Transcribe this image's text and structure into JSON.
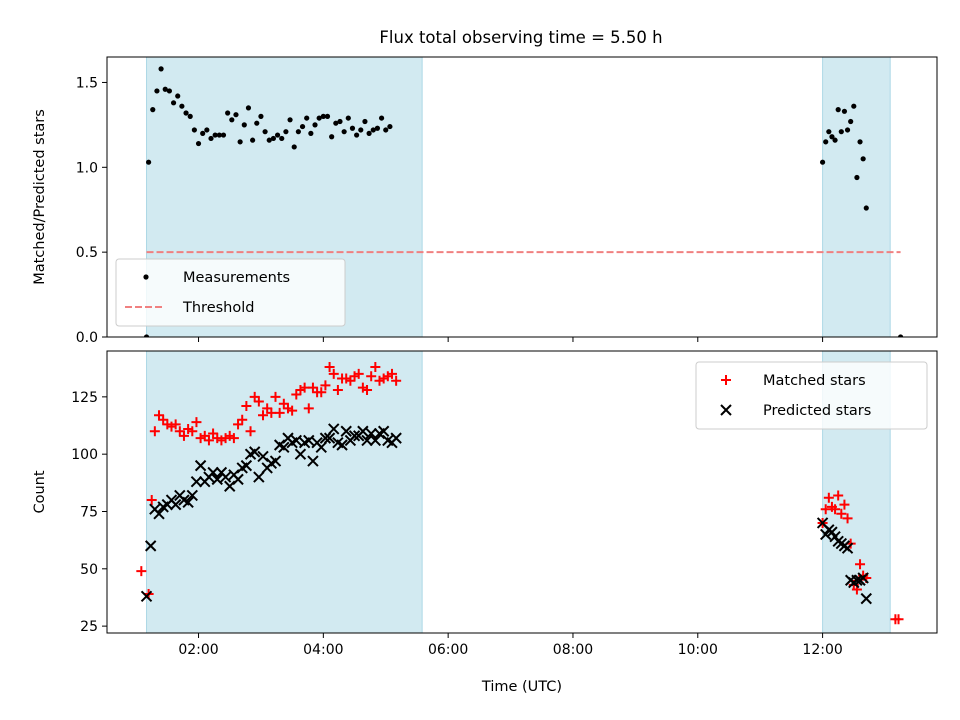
{
  "title": "Flux total observing time = 5.50 h",
  "chart_data": [
    {
      "type": "scatter",
      "ylabel": "Matched/Predicted stars",
      "xlim": [
        "00:32",
        "13:50"
      ],
      "ylim": [
        0,
        1.65
      ],
      "yticks": [
        "0.0",
        "0.5",
        "1.0",
        "1.5"
      ],
      "shaded_intervals": [
        [
          "01:10",
          "05:35"
        ],
        [
          "12:00",
          "13:05"
        ]
      ],
      "shade_color": "#add8e6",
      "threshold": {
        "value": 0.5,
        "x_start": "01:10",
        "x_end": "13:15",
        "color": "#f08080"
      },
      "legend_position": "lower-left",
      "series": [
        {
          "name": "Measurements",
          "marker": "dot",
          "color": "#000000",
          "points": [
            [
              "01:10",
              0.0
            ],
            [
              "01:12",
              1.03
            ],
            [
              "01:16",
              1.34
            ],
            [
              "01:20",
              1.45
            ],
            [
              "01:24",
              1.58
            ],
            [
              "01:28",
              1.46
            ],
            [
              "01:32",
              1.45
            ],
            [
              "01:36",
              1.38
            ],
            [
              "01:40",
              1.42
            ],
            [
              "01:44",
              1.36
            ],
            [
              "01:48",
              1.32
            ],
            [
              "01:52",
              1.3
            ],
            [
              "01:56",
              1.22
            ],
            [
              "02:00",
              1.14
            ],
            [
              "02:04",
              1.2
            ],
            [
              "02:08",
              1.22
            ],
            [
              "02:12",
              1.17
            ],
            [
              "02:16",
              1.19
            ],
            [
              "02:20",
              1.19
            ],
            [
              "02:24",
              1.19
            ],
            [
              "02:28",
              1.32
            ],
            [
              "02:32",
              1.28
            ],
            [
              "02:36",
              1.31
            ],
            [
              "02:40",
              1.15
            ],
            [
              "02:44",
              1.25
            ],
            [
              "02:48",
              1.35
            ],
            [
              "02:52",
              1.16
            ],
            [
              "02:56",
              1.26
            ],
            [
              "03:00",
              1.3
            ],
            [
              "03:04",
              1.21
            ],
            [
              "03:08",
              1.16
            ],
            [
              "03:12",
              1.17
            ],
            [
              "03:16",
              1.19
            ],
            [
              "03:20",
              1.17
            ],
            [
              "03:24",
              1.21
            ],
            [
              "03:28",
              1.28
            ],
            [
              "03:32",
              1.12
            ],
            [
              "03:36",
              1.21
            ],
            [
              "03:40",
              1.24
            ],
            [
              "03:44",
              1.29
            ],
            [
              "03:48",
              1.2
            ],
            [
              "03:52",
              1.25
            ],
            [
              "03:56",
              1.29
            ],
            [
              "04:00",
              1.3
            ],
            [
              "04:04",
              1.3
            ],
            [
              "04:08",
              1.18
            ],
            [
              "04:12",
              1.26
            ],
            [
              "04:16",
              1.27
            ],
            [
              "04:20",
              1.21
            ],
            [
              "04:24",
              1.29
            ],
            [
              "04:28",
              1.23
            ],
            [
              "04:32",
              1.19
            ],
            [
              "04:36",
              1.22
            ],
            [
              "04:40",
              1.27
            ],
            [
              "04:44",
              1.2
            ],
            [
              "04:48",
              1.22
            ],
            [
              "04:52",
              1.23
            ],
            [
              "04:56",
              1.29
            ],
            [
              "05:00",
              1.22
            ],
            [
              "05:04",
              1.24
            ],
            [
              "12:00",
              1.03
            ],
            [
              "12:03",
              1.15
            ],
            [
              "12:06",
              1.21
            ],
            [
              "12:09",
              1.18
            ],
            [
              "12:12",
              1.16
            ],
            [
              "12:15",
              1.34
            ],
            [
              "12:18",
              1.21
            ],
            [
              "12:21",
              1.33
            ],
            [
              "12:24",
              1.22
            ],
            [
              "12:27",
              1.27
            ],
            [
              "12:30",
              1.36
            ],
            [
              "12:33",
              0.94
            ],
            [
              "12:36",
              1.15
            ],
            [
              "12:39",
              1.05
            ],
            [
              "12:42",
              0.76
            ],
            [
              "13:15",
              0.0
            ]
          ]
        },
        {
          "name": "Threshold",
          "marker": "dashed-line",
          "color": "#f08080",
          "points": [
            [
              "01:10",
              0.5
            ],
            [
              "13:15",
              0.5
            ]
          ]
        }
      ]
    },
    {
      "type": "scatter",
      "xlabel": "Time (UTC)",
      "ylabel": "Count",
      "xlim": [
        "00:32",
        "13:50"
      ],
      "ylim": [
        22,
        145
      ],
      "xticks": [
        "02:00",
        "04:00",
        "06:00",
        "08:00",
        "10:00",
        "12:00"
      ],
      "yticks": [
        "25",
        "50",
        "75",
        "100",
        "125"
      ],
      "shaded_intervals": [
        [
          "01:10",
          "05:35"
        ],
        [
          "12:00",
          "13:05"
        ]
      ],
      "shade_color": "#add8e6",
      "legend_position": "upper-right",
      "series": [
        {
          "name": "Matched stars",
          "marker": "plus",
          "color": "#ff0000",
          "points": [
            [
              "01:05",
              49
            ],
            [
              "01:12",
              39
            ],
            [
              "01:15",
              80
            ],
            [
              "01:18",
              110
            ],
            [
              "01:22",
              117
            ],
            [
              "01:26",
              115
            ],
            [
              "01:30",
              113
            ],
            [
              "01:34",
              112
            ],
            [
              "01:38",
              113
            ],
            [
              "01:42",
              110
            ],
            [
              "01:46",
              108
            ],
            [
              "01:50",
              111
            ],
            [
              "01:54",
              110
            ],
            [
              "01:58",
              114
            ],
            [
              "02:02",
              107
            ],
            [
              "02:06",
              108
            ],
            [
              "02:10",
              106
            ],
            [
              "02:14",
              109
            ],
            [
              "02:18",
              107
            ],
            [
              "02:22",
              106
            ],
            [
              "02:26",
              107
            ],
            [
              "02:30",
              108
            ],
            [
              "02:34",
              107
            ],
            [
              "02:38",
              113
            ],
            [
              "02:42",
              115
            ],
            [
              "02:46",
              121
            ],
            [
              "02:50",
              110
            ],
            [
              "02:54",
              125
            ],
            [
              "02:58",
              123
            ],
            [
              "03:02",
              117
            ],
            [
              "03:06",
              120
            ],
            [
              "03:10",
              118
            ],
            [
              "03:14",
              125
            ],
            [
              "03:18",
              118
            ],
            [
              "03:22",
              122
            ],
            [
              "03:26",
              120
            ],
            [
              "03:30",
              119
            ],
            [
              "03:34",
              126
            ],
            [
              "03:38",
              128
            ],
            [
              "03:42",
              129
            ],
            [
              "03:46",
              120
            ],
            [
              "03:50",
              129
            ],
            [
              "03:54",
              127
            ],
            [
              "03:58",
              127
            ],
            [
              "04:02",
              130
            ],
            [
              "04:06",
              138
            ],
            [
              "04:10",
              135
            ],
            [
              "04:14",
              128
            ],
            [
              "04:18",
              133
            ],
            [
              "04:22",
              133
            ],
            [
              "04:26",
              132
            ],
            [
              "04:30",
              134
            ],
            [
              "04:34",
              135
            ],
            [
              "04:38",
              129
            ],
            [
              "04:42",
              128
            ],
            [
              "04:46",
              134
            ],
            [
              "04:50",
              138
            ],
            [
              "04:54",
              132
            ],
            [
              "04:58",
              133
            ],
            [
              "05:02",
              134
            ],
            [
              "05:06",
              135
            ],
            [
              "05:10",
              132
            ],
            [
              "12:00",
              70
            ],
            [
              "12:03",
              76
            ],
            [
              "12:06",
              81
            ],
            [
              "12:09",
              77
            ],
            [
              "12:12",
              76
            ],
            [
              "12:15",
              82
            ],
            [
              "12:18",
              74
            ],
            [
              "12:21",
              78
            ],
            [
              "12:24",
              72
            ],
            [
              "12:27",
              61
            ],
            [
              "12:30",
              43
            ],
            [
              "12:33",
              41
            ],
            [
              "12:36",
              52
            ],
            [
              "12:39",
              47
            ],
            [
              "12:42",
              46
            ],
            [
              "13:10",
              28
            ],
            [
              "13:13",
              28
            ]
          ]
        },
        {
          "name": "Predicted stars",
          "marker": "x",
          "color": "#000000",
          "points": [
            [
              "01:10",
              38
            ],
            [
              "01:14",
              60
            ],
            [
              "01:18",
              76
            ],
            [
              "01:22",
              74
            ],
            [
              "01:26",
              77
            ],
            [
              "01:30",
              78
            ],
            [
              "01:34",
              80
            ],
            [
              "01:38",
              78
            ],
            [
              "01:42",
              82
            ],
            [
              "01:46",
              80
            ],
            [
              "01:50",
              79
            ],
            [
              "01:54",
              82
            ],
            [
              "01:58",
              88
            ],
            [
              "02:02",
              95
            ],
            [
              "02:06",
              88
            ],
            [
              "02:10",
              90
            ],
            [
              "02:14",
              92
            ],
            [
              "02:18",
              89
            ],
            [
              "02:22",
              92
            ],
            [
              "02:26",
              90
            ],
            [
              "02:30",
              86
            ],
            [
              "02:34",
              91
            ],
            [
              "02:38",
              89
            ],
            [
              "02:42",
              94
            ],
            [
              "02:46",
              95
            ],
            [
              "02:50",
              100
            ],
            [
              "02:54",
              101
            ],
            [
              "02:58",
              90
            ],
            [
              "03:02",
              99
            ],
            [
              "03:06",
              94
            ],
            [
              "03:10",
              96
            ],
            [
              "03:14",
              97
            ],
            [
              "03:18",
              104
            ],
            [
              "03:22",
              103
            ],
            [
              "03:26",
              107
            ],
            [
              "03:30",
              105
            ],
            [
              "03:34",
              106
            ],
            [
              "03:38",
              100
            ],
            [
              "03:42",
              105
            ],
            [
              "03:46",
              106
            ],
            [
              "03:50",
              97
            ],
            [
              "03:54",
              105
            ],
            [
              "03:58",
              103
            ],
            [
              "04:02",
              107
            ],
            [
              "04:06",
              107
            ],
            [
              "04:10",
              111
            ],
            [
              "04:14",
              105
            ],
            [
              "04:18",
              104
            ],
            [
              "04:22",
              110
            ],
            [
              "04:26",
              106
            ],
            [
              "04:30",
              108
            ],
            [
              "04:34",
              108
            ],
            [
              "04:38",
              110
            ],
            [
              "04:42",
              106
            ],
            [
              "04:46",
              109
            ],
            [
              "04:50",
              106
            ],
            [
              "04:54",
              109
            ],
            [
              "04:58",
              110
            ],
            [
              "05:02",
              106
            ],
            [
              "05:06",
              105
            ],
            [
              "05:10",
              107
            ],
            [
              "12:00",
              70
            ],
            [
              "12:03",
              65
            ],
            [
              "12:06",
              67
            ],
            [
              "12:09",
              66
            ],
            [
              "12:12",
              64
            ],
            [
              "12:15",
              62
            ],
            [
              "12:18",
              61
            ],
            [
              "12:21",
              60
            ],
            [
              "12:24",
              59
            ],
            [
              "12:27",
              45
            ],
            [
              "12:30",
              44
            ],
            [
              "12:33",
              45
            ],
            [
              "12:36",
              45
            ],
            [
              "12:39",
              46
            ],
            [
              "12:42",
              37
            ]
          ]
        }
      ]
    }
  ]
}
